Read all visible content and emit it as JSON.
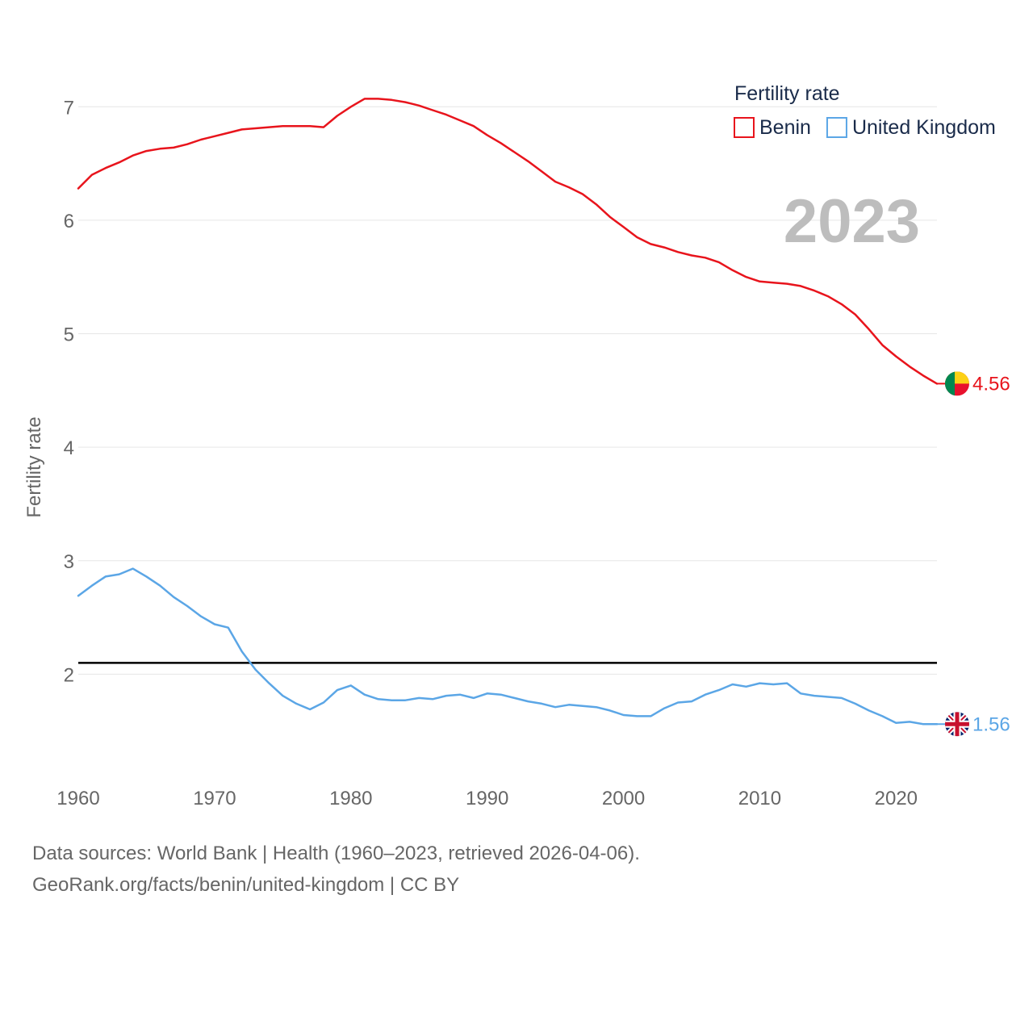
{
  "chart_data": {
    "type": "line",
    "legend_title": "Fertility rate",
    "ylabel": "Fertility rate",
    "xlabel": "",
    "year_label": "2023",
    "xlim": [
      1960,
      2023
    ],
    "ylim": [
      1.0,
      7.4
    ],
    "x_ticks": [
      1960,
      1970,
      1980,
      1990,
      2000,
      2010,
      2020
    ],
    "y_ticks": [
      2,
      3,
      4,
      5,
      6,
      7
    ],
    "reference_line": {
      "y": 2.1,
      "color": "#000000"
    },
    "legend_position": "top-right",
    "series": [
      {
        "name": "Benin",
        "color": "#e8141c",
        "end_label": "4.56",
        "flag": "benin-flag",
        "x": [
          1960,
          1961,
          1962,
          1963,
          1964,
          1965,
          1966,
          1967,
          1968,
          1969,
          1970,
          1971,
          1972,
          1973,
          1974,
          1975,
          1976,
          1977,
          1978,
          1979,
          1980,
          1981,
          1982,
          1983,
          1984,
          1985,
          1986,
          1987,
          1988,
          1989,
          1990,
          1991,
          1992,
          1993,
          1994,
          1995,
          1996,
          1997,
          1998,
          1999,
          2000,
          2001,
          2002,
          2003,
          2004,
          2005,
          2006,
          2007,
          2008,
          2009,
          2010,
          2011,
          2012,
          2013,
          2014,
          2015,
          2016,
          2017,
          2018,
          2019,
          2020,
          2021,
          2022,
          2023
        ],
        "values": [
          6.28,
          6.4,
          6.46,
          6.51,
          6.57,
          6.61,
          6.63,
          6.64,
          6.67,
          6.71,
          6.74,
          6.77,
          6.8,
          6.81,
          6.82,
          6.83,
          6.83,
          6.83,
          6.82,
          6.92,
          7.0,
          7.07,
          7.07,
          7.06,
          7.04,
          7.01,
          6.97,
          6.93,
          6.88,
          6.83,
          6.75,
          6.68,
          6.6,
          6.52,
          6.43,
          6.34,
          6.29,
          6.23,
          6.14,
          6.03,
          5.94,
          5.85,
          5.79,
          5.76,
          5.72,
          5.69,
          5.67,
          5.63,
          5.56,
          5.5,
          5.46,
          5.45,
          5.44,
          5.42,
          5.38,
          5.33,
          5.26,
          5.17,
          5.04,
          4.9,
          4.8,
          4.71,
          4.63,
          4.56
        ]
      },
      {
        "name": "United Kingdom",
        "color": "#5ba6e6",
        "end_label": "1.56",
        "flag": "united-kingdom-flag",
        "x": [
          1960,
          1961,
          1962,
          1963,
          1964,
          1965,
          1966,
          1967,
          1968,
          1969,
          1970,
          1971,
          1972,
          1973,
          1974,
          1975,
          1976,
          1977,
          1978,
          1979,
          1980,
          1981,
          1982,
          1983,
          1984,
          1985,
          1986,
          1987,
          1988,
          1989,
          1990,
          1991,
          1992,
          1993,
          1994,
          1995,
          1996,
          1997,
          1998,
          1999,
          2000,
          2001,
          2002,
          2003,
          2004,
          2005,
          2006,
          2007,
          2008,
          2009,
          2010,
          2011,
          2012,
          2013,
          2014,
          2015,
          2016,
          2017,
          2018,
          2019,
          2020,
          2021,
          2022,
          2023
        ],
        "values": [
          2.69,
          2.78,
          2.86,
          2.88,
          2.93,
          2.86,
          2.78,
          2.68,
          2.6,
          2.51,
          2.44,
          2.41,
          2.2,
          2.04,
          1.92,
          1.81,
          1.74,
          1.69,
          1.75,
          1.86,
          1.9,
          1.82,
          1.78,
          1.77,
          1.77,
          1.79,
          1.78,
          1.81,
          1.82,
          1.79,
          1.83,
          1.82,
          1.79,
          1.76,
          1.74,
          1.71,
          1.73,
          1.72,
          1.71,
          1.68,
          1.64,
          1.63,
          1.63,
          1.7,
          1.75,
          1.76,
          1.82,
          1.86,
          1.91,
          1.89,
          1.92,
          1.91,
          1.92,
          1.83,
          1.81,
          1.8,
          1.79,
          1.74,
          1.68,
          1.63,
          1.57,
          1.58,
          1.56,
          1.56
        ]
      }
    ]
  },
  "footer": {
    "source_line": "Data sources: World Bank | Health (1960–2023, retrieved 2026-04-06).",
    "credit_line": "GeoRank.org/facts/benin/united-kingdom | CC BY"
  }
}
